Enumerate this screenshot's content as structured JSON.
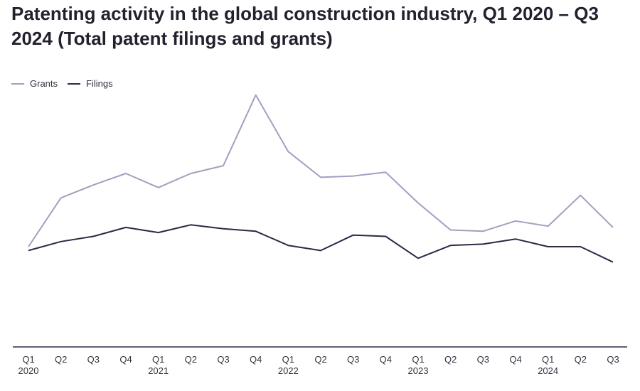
{
  "chart_data": {
    "type": "line",
    "title": "Patenting activity in the global construction industry, Q1 2020 – Q3 2024 (Total patent filings and grants)",
    "categories": [
      {
        "q": "Q1",
        "year": "2020"
      },
      {
        "q": "Q2",
        "year": ""
      },
      {
        "q": "Q3",
        "year": ""
      },
      {
        "q": "Q4",
        "year": ""
      },
      {
        "q": "Q1",
        "year": "2021"
      },
      {
        "q": "Q2",
        "year": ""
      },
      {
        "q": "Q3",
        "year": ""
      },
      {
        "q": "Q4",
        "year": ""
      },
      {
        "q": "Q1",
        "year": "2022"
      },
      {
        "q": "Q2",
        "year": ""
      },
      {
        "q": "Q3",
        "year": ""
      },
      {
        "q": "Q4",
        "year": ""
      },
      {
        "q": "Q1",
        "year": "2023"
      },
      {
        "q": "Q2",
        "year": ""
      },
      {
        "q": "Q3",
        "year": ""
      },
      {
        "q": "Q4",
        "year": ""
      },
      {
        "q": "Q1",
        "year": "2024"
      },
      {
        "q": "Q2",
        "year": ""
      },
      {
        "q": "Q3",
        "year": ""
      }
    ],
    "series": [
      {
        "name": "Grants",
        "color": "#a39fc0",
        "values": [
          39,
          58,
          63,
          67.5,
          62,
          67.5,
          70.5,
          98,
          76,
          66,
          66.5,
          68,
          56,
          45.5,
          45,
          49,
          47,
          59,
          46.5
        ]
      },
      {
        "name": "Filings",
        "color": "#2b2a45",
        "values": [
          37.5,
          41,
          43,
          46.5,
          44.5,
          47.5,
          46,
          45,
          39.5,
          37.5,
          43.5,
          43,
          34.5,
          39.5,
          40,
          42,
          39,
          39,
          33
        ]
      }
    ],
    "ylim": [
      0,
      104
    ],
    "grid": false,
    "legend": "top-left",
    "axis_color": "#2b2a45"
  }
}
